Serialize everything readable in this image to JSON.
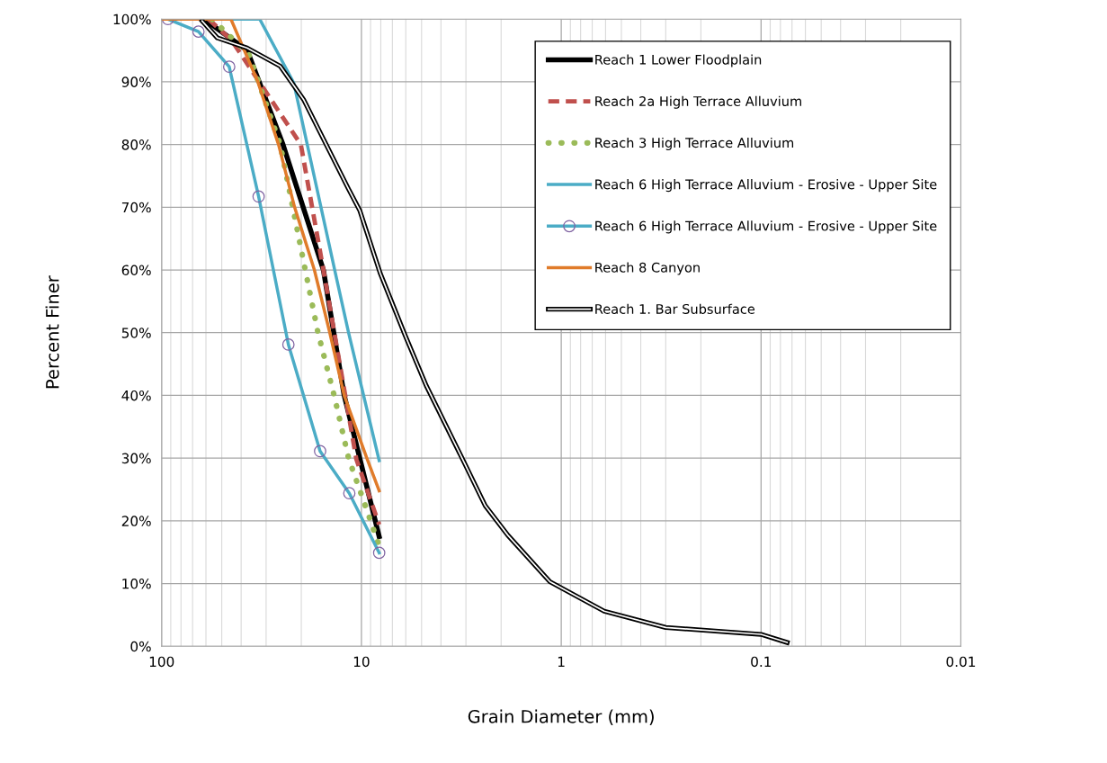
{
  "chart_data": {
    "type": "line",
    "xlabel": "Grain Diameter (mm)",
    "ylabel": "Percent Finer",
    "log": "x",
    "xlim": [
      100,
      0.01
    ],
    "xticks": [
      100,
      10,
      1,
      0.1,
      0.01
    ],
    "ylim": [
      0,
      100
    ],
    "yticks": [
      {
        "value": 0,
        "label": "0%"
      },
      {
        "value": 10,
        "label": "10%"
      },
      {
        "value": 20,
        "label": "20%"
      },
      {
        "value": 30,
        "label": "30%"
      },
      {
        "value": 40,
        "label": "40%"
      },
      {
        "value": 50,
        "label": "50%"
      },
      {
        "value": 60,
        "label": "60%"
      },
      {
        "value": 70,
        "label": "70%"
      },
      {
        "value": 80,
        "label": "80%"
      },
      {
        "value": 90,
        "label": "90%"
      },
      {
        "value": 100,
        "label": "100%"
      }
    ],
    "grid": true,
    "legend": "top right",
    "marker": "none",
    "series": [
      {
        "name": "Reach 1 Lower Floodplain",
        "color": "#000000",
        "line_style": "solid",
        "x": [
          61.4,
          37.3,
          24.7,
          15.5,
          12.2,
          8.15
        ],
        "values": [
          100,
          95,
          80,
          60,
          40,
          17.5
        ]
      },
      {
        "name": "Reach 2a High Terrace Alluvium",
        "color": "#c0504d",
        "line_style": "dashed",
        "x": [
          58.3,
          44.6,
          20.1,
          15.5,
          10.6,
          8.15
        ],
        "values": [
          100,
          96.6,
          80,
          60,
          29.8,
          19.4
        ]
      },
      {
        "name": "Reach 3 High Terrace Alluvium",
        "color": "#9bbb59",
        "line_style": "dotted",
        "x": [
          56,
          36.6,
          25.5,
          19.1,
          16.5,
          13.7,
          11.6,
          9.0,
          8.15
        ],
        "values": [
          100,
          94.4,
          80,
          60,
          50,
          40,
          30,
          20,
          16
        ]
      },
      {
        "name": "Reach 6 High Terrace Alluvium - Erosive - Upper Site",
        "color": "#4bacc6",
        "line_style": "solid",
        "x": [
          100,
          32.3,
          21.8,
          13.5,
          11.6,
          8.15
        ],
        "values": [
          100,
          100,
          89.8,
          59.5,
          50,
          29.6
        ]
      },
      {
        "name": "Reach 6 High Terrace Alluvium - Erosive - Upper Site",
        "color": "#4bacc6",
        "line_style": "solid",
        "marker": "circle",
        "x": [
          93,
          65.4,
          45.9,
          32.7,
          23.2,
          16.1,
          11.5,
          8.15
        ],
        "values": [
          100,
          98,
          92.4,
          71.7,
          48.1,
          31.1,
          24.4,
          14.9
        ]
      },
      {
        "name": "Reach 8 Canyon",
        "color": "#e07b2a",
        "line_style": "solid",
        "x": [
          100,
          45,
          33,
          26.0,
          21.6,
          17.2,
          14.4,
          12.2,
          9.4,
          8.15
        ],
        "values": [
          100,
          100,
          90,
          80,
          70,
          60,
          50,
          40,
          30,
          24.8
        ]
      },
      {
        "name": "Reach 1. Bar Subsurface",
        "color": "#000000",
        "line_style": "solid",
        "x": [
          62.7,
          52.6,
          37.4,
          25.5,
          19.5,
          11.6,
          10.2,
          8.06,
          6.03,
          4.73,
          3.07,
          2.4,
          1.85,
          1.14,
          0.96,
          0.61,
          0.3,
          0.1,
          0.074
        ],
        "values": [
          99.7,
          97,
          95.4,
          92.5,
          87.2,
          72.9,
          69.5,
          59.5,
          49.5,
          41.5,
          29.4,
          22.4,
          17.7,
          10.3,
          9.0,
          5.6,
          3.0,
          1.9,
          0.6
        ]
      }
    ]
  }
}
